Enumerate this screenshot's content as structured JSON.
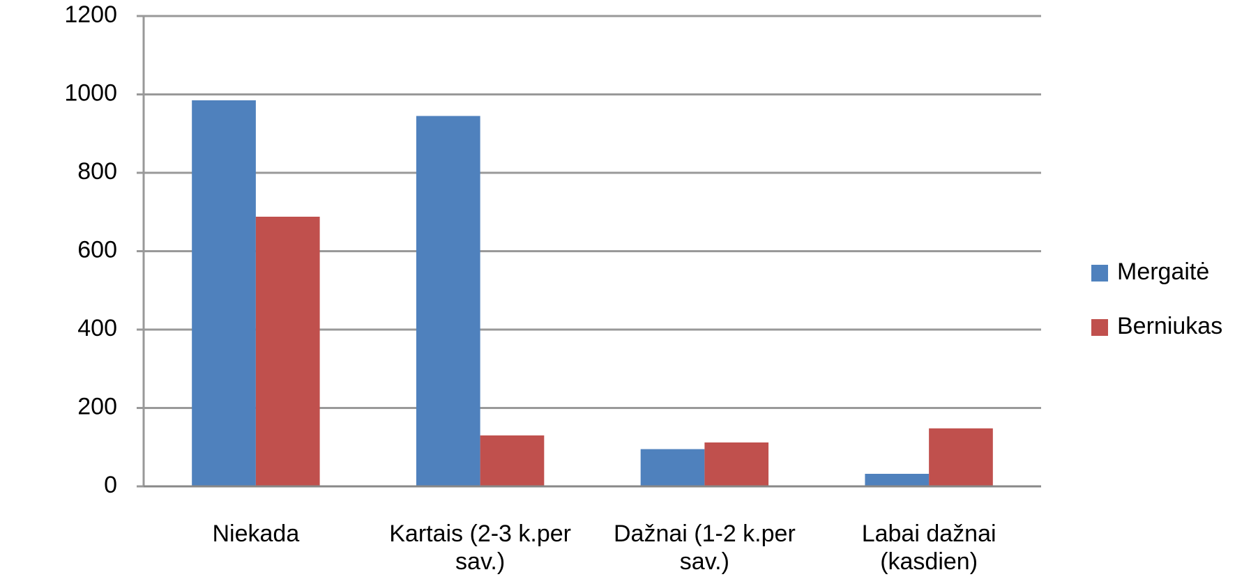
{
  "chart_data": {
    "type": "bar",
    "categories": [
      "Niekada",
      "Kartais (2-3 k.per sav.)",
      "Dažnai (1-2 k.per sav.)",
      "Labai dažnai (kasdien)"
    ],
    "series": [
      {
        "name": "Mergaitė",
        "color": "#4f81bd",
        "values": [
          985,
          945,
          95,
          32
        ]
      },
      {
        "name": "Berniukas",
        "color": "#c0504d",
        "values": [
          688,
          130,
          112,
          148
        ]
      }
    ],
    "ylim": [
      0,
      1200
    ],
    "yticks": [
      0,
      200,
      400,
      600,
      800,
      1000,
      1200
    ],
    "grid": true,
    "legend": "right"
  }
}
